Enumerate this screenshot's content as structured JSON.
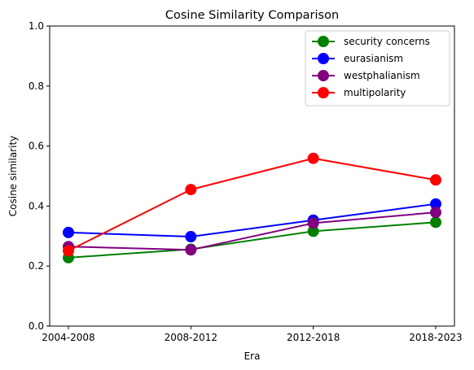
{
  "chart_data": {
    "type": "line",
    "title": "Cosine Similarity Comparison",
    "xlabel": "Era",
    "ylabel": "Cosine similarity",
    "categories": [
      "2004-2008",
      "2008-2012",
      "2012-2018",
      "2018-2023"
    ],
    "ylim": [
      0.0,
      1.0
    ],
    "yticks": [
      "0.0",
      "0.2",
      "0.4",
      "0.6",
      "0.8",
      "1.0"
    ],
    "grid": false,
    "legend_position": "top-right",
    "series": [
      {
        "name": "security concerns",
        "color": "#008000",
        "values": [
          0.228,
          0.256,
          0.316,
          0.346
        ]
      },
      {
        "name": "eurasianism",
        "color": "#0000ff",
        "values": [
          0.312,
          0.298,
          0.353,
          0.407
        ]
      },
      {
        "name": "westphalianism",
        "color": "#800080",
        "values": [
          0.265,
          0.254,
          0.343,
          0.379
        ]
      },
      {
        "name": "multipolarity",
        "color": "#ff0000",
        "values": [
          0.251,
          0.455,
          0.559,
          0.487
        ]
      }
    ]
  }
}
